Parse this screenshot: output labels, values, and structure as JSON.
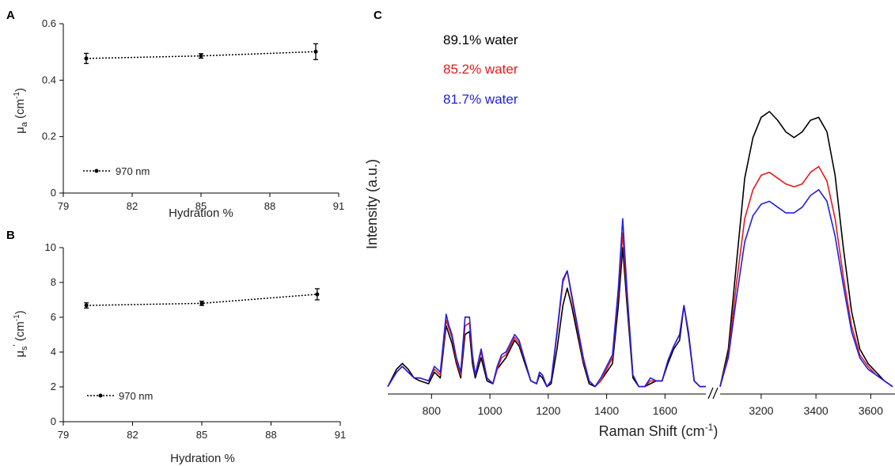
{
  "chart_data": [
    {
      "panel": "A",
      "type": "scatter",
      "title": "",
      "xlabel": "Hydration %",
      "ylabel": "μa (cm-1)",
      "ylabel_parts": {
        "mu": "μ",
        "sub": "a",
        "unit": " (cm",
        "sup": "-1",
        "close": ")"
      },
      "xlim": [
        79,
        91
      ],
      "ylim": [
        0,
        0.6
      ],
      "xticks": [
        79,
        82,
        85,
        88,
        91
      ],
      "yticks": [
        0,
        0.2,
        0.4,
        0.6
      ],
      "ytick_labels": [
        "0",
        "0.2",
        "0.4",
        "0.6"
      ],
      "grid": false,
      "legend_position": "bottom-left",
      "series": [
        {
          "name": "970 nm",
          "x": [
            80,
            85,
            90
          ],
          "y": [
            0.477,
            0.486,
            0.501
          ],
          "yerr": [
            0.018,
            0.008,
            0.028
          ],
          "line": "dotted"
        }
      ]
    },
    {
      "panel": "B",
      "type": "scatter",
      "title": "",
      "xlabel": "Hydration %",
      "ylabel": "μs' (cm-1)",
      "ylabel_parts": {
        "mu": "μ",
        "sub": "s",
        "prime": "'",
        "unit": " (cm",
        "sup": "-1",
        "close": ")"
      },
      "xlim": [
        79,
        91
      ],
      "ylim": [
        0,
        10
      ],
      "xticks": [
        79,
        82,
        85,
        88,
        91
      ],
      "yticks": [
        0,
        2,
        4,
        6,
        8,
        10
      ],
      "ytick_labels": [
        "0",
        "2",
        "4",
        "6",
        "8",
        "10"
      ],
      "grid": false,
      "legend_position": "bottom-left",
      "series": [
        {
          "name": "970 nm",
          "x": [
            80,
            85,
            90
          ],
          "y": [
            6.68,
            6.8,
            7.32
          ],
          "yerr": [
            0.15,
            0.12,
            0.32
          ],
          "line": "dotted"
        }
      ]
    },
    {
      "panel": "C",
      "type": "line",
      "title": "",
      "xlabel": "Raman Shift (cm-1)",
      "xlabel_parts": {
        "text": "Raman Shift (cm",
        "sup": "-1",
        "close": ")"
      },
      "ylabel": "Intensity (a.u.)",
      "x_segments": [
        [
          650,
          1740
        ],
        [
          3050,
          3680
        ]
      ],
      "axis_break": true,
      "xticks": [
        800,
        1000,
        1200,
        1400,
        1600,
        3200,
        3400,
        3600
      ],
      "y_ticks_shown": false,
      "grid": false,
      "legend_position": "top-left",
      "series": [
        {
          "name": "89.1% water",
          "color": "#000000",
          "x": [
            650,
            680,
            700,
            720,
            740,
            760,
            790,
            810,
            830,
            850,
            860,
            870,
            885,
            900,
            915,
            930,
            940,
            950,
            970,
            990,
            1010,
            1025,
            1040,
            1055,
            1070,
            1085,
            1100,
            1120,
            1140,
            1160,
            1170,
            1180,
            1195,
            1210,
            1230,
            1250,
            1265,
            1280,
            1300,
            1320,
            1340,
            1360,
            1380,
            1400,
            1420,
            1440,
            1455,
            1470,
            1490,
            1510,
            1530,
            1550,
            1570,
            1590,
            1610,
            1630,
            1650,
            1665,
            1680,
            1700,
            1720,
            1740,
            3050,
            3080,
            3110,
            3140,
            3170,
            3200,
            3230,
            3260,
            3290,
            3320,
            3350,
            3380,
            3410,
            3440,
            3470,
            3500,
            3530,
            3560,
            3590,
            3620,
            3650,
            3680
          ],
          "y": [
            0.02,
            0.08,
            0.1,
            0.08,
            0.05,
            0.04,
            0.03,
            0.07,
            0.05,
            0.23,
            0.2,
            0.17,
            0.1,
            0.05,
            0.2,
            0.21,
            0.1,
            0.05,
            0.12,
            0.04,
            0.03,
            0.08,
            0.1,
            0.12,
            0.15,
            0.18,
            0.16,
            0.1,
            0.04,
            0.03,
            0.06,
            0.05,
            0.02,
            0.03,
            0.15,
            0.3,
            0.36,
            0.3,
            0.2,
            0.1,
            0.03,
            0.02,
            0.04,
            0.07,
            0.1,
            0.3,
            0.5,
            0.3,
            0.05,
            0.02,
            0.02,
            0.03,
            0.04,
            0.04,
            0.1,
            0.15,
            0.18,
            0.3,
            0.2,
            0.04,
            0.02,
            0.02,
            0.02,
            0.15,
            0.45,
            0.74,
            0.88,
            0.95,
            0.97,
            0.94,
            0.9,
            0.88,
            0.9,
            0.94,
            0.95,
            0.9,
            0.75,
            0.5,
            0.28,
            0.15,
            0.1,
            0.07,
            0.04,
            0.02
          ]
        },
        {
          "name": "85.2% water",
          "color": "#e41a1c",
          "x": [
            650,
            680,
            700,
            720,
            740,
            760,
            790,
            810,
            830,
            850,
            860,
            870,
            885,
            900,
            915,
            930,
            940,
            950,
            970,
            990,
            1010,
            1025,
            1040,
            1055,
            1070,
            1085,
            1100,
            1120,
            1140,
            1160,
            1170,
            1180,
            1195,
            1210,
            1230,
            1250,
            1265,
            1280,
            1300,
            1320,
            1340,
            1360,
            1380,
            1400,
            1420,
            1440,
            1455,
            1470,
            1490,
            1510,
            1530,
            1550,
            1570,
            1590,
            1610,
            1630,
            1650,
            1665,
            1680,
            1700,
            1720,
            1740,
            3050,
            3080,
            3110,
            3140,
            3170,
            3200,
            3230,
            3260,
            3290,
            3320,
            3350,
            3380,
            3410,
            3440,
            3470,
            3500,
            3530,
            3560,
            3590,
            3620,
            3650,
            3680
          ],
          "y": [
            0.02,
            0.07,
            0.09,
            0.07,
            0.05,
            0.05,
            0.04,
            0.08,
            0.06,
            0.25,
            0.22,
            0.19,
            0.11,
            0.06,
            0.23,
            0.24,
            0.12,
            0.06,
            0.14,
            0.05,
            0.03,
            0.08,
            0.12,
            0.13,
            0.16,
            0.19,
            0.17,
            0.11,
            0.04,
            0.03,
            0.07,
            0.06,
            0.02,
            0.04,
            0.2,
            0.38,
            0.42,
            0.33,
            0.22,
            0.11,
            0.04,
            0.02,
            0.04,
            0.08,
            0.12,
            0.34,
            0.55,
            0.33,
            0.06,
            0.02,
            0.02,
            0.04,
            0.04,
            0.04,
            0.11,
            0.16,
            0.2,
            0.3,
            0.21,
            0.04,
            0.02,
            0.02,
            0.02,
            0.13,
            0.38,
            0.6,
            0.7,
            0.75,
            0.76,
            0.74,
            0.72,
            0.71,
            0.72,
            0.76,
            0.78,
            0.73,
            0.6,
            0.4,
            0.23,
            0.13,
            0.09,
            0.06,
            0.04,
            0.02
          ]
        },
        {
          "name": "81.7% water",
          "color": "#1f1fe0",
          "x": [
            650,
            680,
            700,
            720,
            740,
            760,
            790,
            810,
            830,
            850,
            860,
            870,
            885,
            900,
            915,
            930,
            940,
            950,
            970,
            990,
            1010,
            1025,
            1040,
            1055,
            1070,
            1085,
            1100,
            1120,
            1140,
            1160,
            1170,
            1180,
            1195,
            1210,
            1230,
            1250,
            1265,
            1280,
            1300,
            1320,
            1340,
            1360,
            1380,
            1400,
            1420,
            1440,
            1455,
            1470,
            1490,
            1510,
            1530,
            1550,
            1570,
            1590,
            1610,
            1630,
            1650,
            1665,
            1680,
            1700,
            1720,
            1740,
            3050,
            3080,
            3110,
            3140,
            3170,
            3200,
            3230,
            3260,
            3290,
            3320,
            3350,
            3380,
            3410,
            3440,
            3470,
            3500,
            3530,
            3560,
            3590,
            3620,
            3650,
            3680
          ],
          "y": [
            0.02,
            0.07,
            0.09,
            0.07,
            0.05,
            0.05,
            0.04,
            0.09,
            0.07,
            0.27,
            0.23,
            0.2,
            0.12,
            0.07,
            0.26,
            0.26,
            0.13,
            0.06,
            0.15,
            0.05,
            0.03,
            0.09,
            0.13,
            0.14,
            0.17,
            0.2,
            0.18,
            0.11,
            0.04,
            0.03,
            0.07,
            0.06,
            0.02,
            0.04,
            0.21,
            0.39,
            0.42,
            0.34,
            0.23,
            0.12,
            0.04,
            0.02,
            0.05,
            0.09,
            0.13,
            0.36,
            0.6,
            0.35,
            0.06,
            0.02,
            0.02,
            0.05,
            0.04,
            0.04,
            0.11,
            0.16,
            0.2,
            0.3,
            0.21,
            0.04,
            0.02,
            0.02,
            0.02,
            0.12,
            0.33,
            0.52,
            0.61,
            0.65,
            0.66,
            0.64,
            0.62,
            0.62,
            0.64,
            0.68,
            0.7,
            0.66,
            0.54,
            0.37,
            0.21,
            0.12,
            0.08,
            0.06,
            0.04,
            0.02
          ]
        }
      ]
    }
  ]
}
